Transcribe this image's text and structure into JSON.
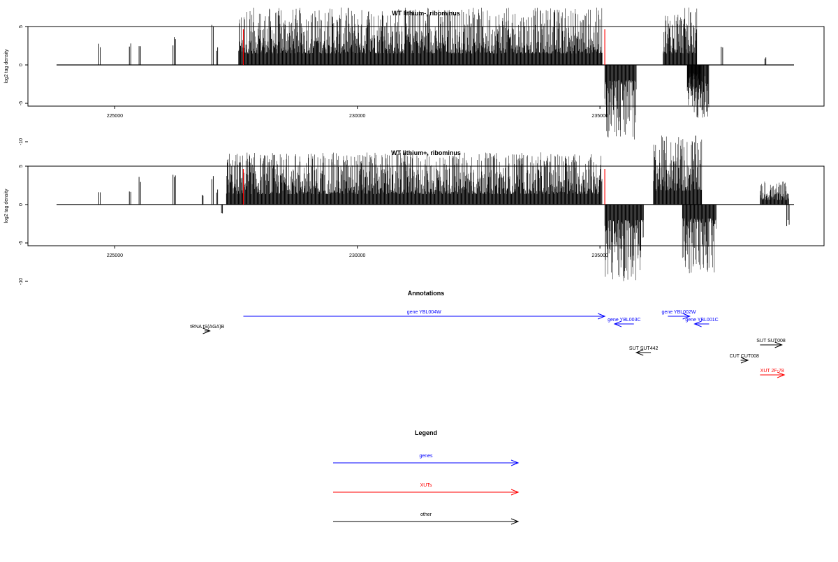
{
  "chart_data": [
    {
      "type": "bar",
      "title": "WT lithium-, ribominus",
      "xlabel": "",
      "ylabel": "log2 tag density",
      "xlim": [
        223800,
        239000
      ],
      "ylim": [
        -10,
        10
      ],
      "x_ticks": [
        225000,
        230000,
        235000
      ],
      "x_tick_labels": [
        "225000",
        "230000",
        "235000"
      ],
      "y_ticks": [
        -10,
        -5,
        0,
        5
      ],
      "y_tick_labels": [
        "-10",
        "-5",
        "0",
        "5"
      ],
      "marker_lines": [
        227650,
        235100
      ],
      "marker_color": "#ff0000",
      "positive_segments": [
        {
          "x": [
            224670,
            224700
          ],
          "peak": 3.2
        },
        {
          "x": [
            225300,
            225330
          ],
          "peak": 2.8
        },
        {
          "x": [
            225500,
            225530
          ],
          "peak": 2.8
        },
        {
          "x": [
            226200,
            226250
          ],
          "peak": 3.8
        },
        {
          "x": [
            227000,
            227030
          ],
          "peak": 5.6
        },
        {
          "x": [
            227100,
            227120
          ],
          "peak": 2.5
        },
        {
          "x": [
            227550,
            235050
          ],
          "peak": 7.5
        },
        {
          "x": [
            236300,
            237000
          ],
          "peak": 7.5
        },
        {
          "x": [
            237500,
            237530
          ],
          "peak": 3.8
        },
        {
          "x": [
            238400,
            238420
          ],
          "peak": 1.2
        }
      ],
      "negative_segments": [
        {
          "x": [
            235100,
            235750
          ],
          "peak": -10
        },
        {
          "x": [
            236800,
            237100
          ],
          "peak": -5.5
        },
        {
          "x": [
            236800,
            237250
          ],
          "peak": -7
        }
      ]
    },
    {
      "type": "bar",
      "title": "WT lithium+, ribominus",
      "xlabel": "",
      "ylabel": "log2 tag density",
      "xlim": [
        223800,
        239000
      ],
      "ylim": [
        -10,
        10
      ],
      "x_ticks": [
        225000,
        230000,
        235000
      ],
      "x_tick_labels": [
        "225000",
        "230000",
        "235000"
      ],
      "y_ticks": [
        -10,
        -5,
        0,
        5
      ],
      "y_tick_labels": [
        "-10",
        "-5",
        "0",
        "5"
      ],
      "marker_lines": [
        227650,
        235100
      ],
      "marker_color": "#ff0000",
      "positive_segments": [
        {
          "x": [
            224670,
            224700
          ],
          "peak": 2.2
        },
        {
          "x": [
            225300,
            225330
          ],
          "peak": 2.6
        },
        {
          "x": [
            225500,
            225530
          ],
          "peak": 4.2
        },
        {
          "x": [
            226200,
            226250
          ],
          "peak": 5.2
        },
        {
          "x": [
            226800,
            226820
          ],
          "peak": 1.8
        },
        {
          "x": [
            227000,
            227030
          ],
          "peak": 3.8
        },
        {
          "x": [
            227100,
            227120
          ],
          "peak": 2.3
        },
        {
          "x": [
            227300,
            235050
          ],
          "peak": 6.8
        },
        {
          "x": [
            236100,
            237100
          ],
          "peak": 9.0
        },
        {
          "x": [
            238300,
            238900
          ],
          "peak": 3.0
        }
      ],
      "negative_segments": [
        {
          "x": [
            227200,
            227220
          ],
          "peak": -1.5
        },
        {
          "x": [
            235100,
            235900
          ],
          "peak": -10
        },
        {
          "x": [
            236700,
            237400
          ],
          "peak": -9
        },
        {
          "x": [
            238850,
            238900
          ],
          "peak": -3
        }
      ]
    }
  ],
  "annotations": {
    "title": "Annotations",
    "items": [
      {
        "label": "gene YBL004W",
        "kind": "gene",
        "start": 227650,
        "end": 235100,
        "dir": "forward",
        "row": 0
      },
      {
        "label": "gene YBL003C",
        "kind": "gene",
        "start": 235300,
        "end": 235700,
        "dir": "reverse",
        "row": 1
      },
      {
        "label": "gene YBL002W",
        "kind": "gene",
        "start": 236400,
        "end": 236850,
        "dir": "forward",
        "row": 0
      },
      {
        "label": "gene YBL001C",
        "kind": "gene",
        "start": 236950,
        "end": 237250,
        "dir": "reverse",
        "row": 1
      },
      {
        "label": "tRNA tS(AGA)B",
        "kind": "other",
        "start": 226850,
        "end": 226960,
        "dir": "forward",
        "row": 2
      },
      {
        "label": "SUT SUT442",
        "kind": "other",
        "start": 235750,
        "end": 236050,
        "dir": "reverse",
        "row": 4
      },
      {
        "label": "SUT SUT008",
        "kind": "other",
        "start": 238300,
        "end": 238750,
        "dir": "forward",
        "row": 3
      },
      {
        "label": "CUT CUT008",
        "kind": "other",
        "start": 237900,
        "end": 238050,
        "dir": "forward",
        "row": 5
      },
      {
        "label": "XUT 2F-78",
        "kind": "xut",
        "start": 238300,
        "end": 238800,
        "dir": "forward",
        "row": 6
      }
    ]
  },
  "legend": {
    "title": "Legend",
    "items": [
      {
        "label": "genes",
        "kind": "gene"
      },
      {
        "label": "XUTs",
        "kind": "xut"
      },
      {
        "label": "other",
        "kind": "other"
      }
    ]
  },
  "colors": {
    "gene": "#0000ff",
    "xut": "#ff0000",
    "other": "#000000",
    "signal": "#000000"
  }
}
